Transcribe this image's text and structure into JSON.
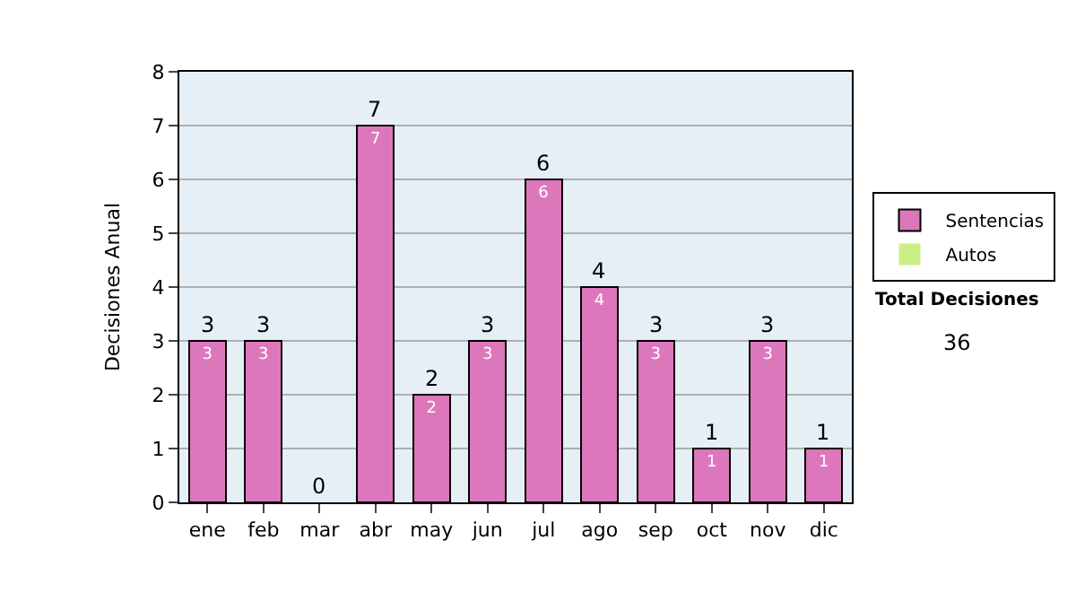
{
  "chart_data": {
    "type": "bar",
    "ylabel": "Decisiones Anual",
    "categories": [
      "ene",
      "feb",
      "mar",
      "abr",
      "may",
      "jun",
      "jul",
      "ago",
      "sep",
      "oct",
      "nov",
      "dic"
    ],
    "series": [
      {
        "name": "Sentencias",
        "color": "#dd77bb",
        "values": [
          3,
          3,
          0,
          7,
          2,
          3,
          6,
          4,
          3,
          1,
          3,
          1
        ],
        "value_labels": [
          "3",
          "3",
          null,
          "7",
          "2",
          "3",
          "6",
          "4",
          "3",
          "1",
          "3",
          "1"
        ]
      },
      {
        "name": "Autos",
        "color": "#ccee88",
        "values": [
          0,
          0,
          0,
          0,
          0,
          0,
          0,
          0,
          0,
          0,
          0,
          0
        ]
      }
    ],
    "stacked": true,
    "totals": [
      "3",
      "3",
      "0",
      "7",
      "2",
      "3",
      "6",
      "4",
      "3",
      "1",
      "3",
      "1"
    ],
    "ylim": [
      0,
      8
    ],
    "yticks": [
      0,
      1,
      2,
      3,
      4,
      5,
      6,
      7,
      8
    ],
    "grid": "y",
    "legend": "right",
    "annotations": [
      "Total Decisiones",
      "36"
    ]
  }
}
